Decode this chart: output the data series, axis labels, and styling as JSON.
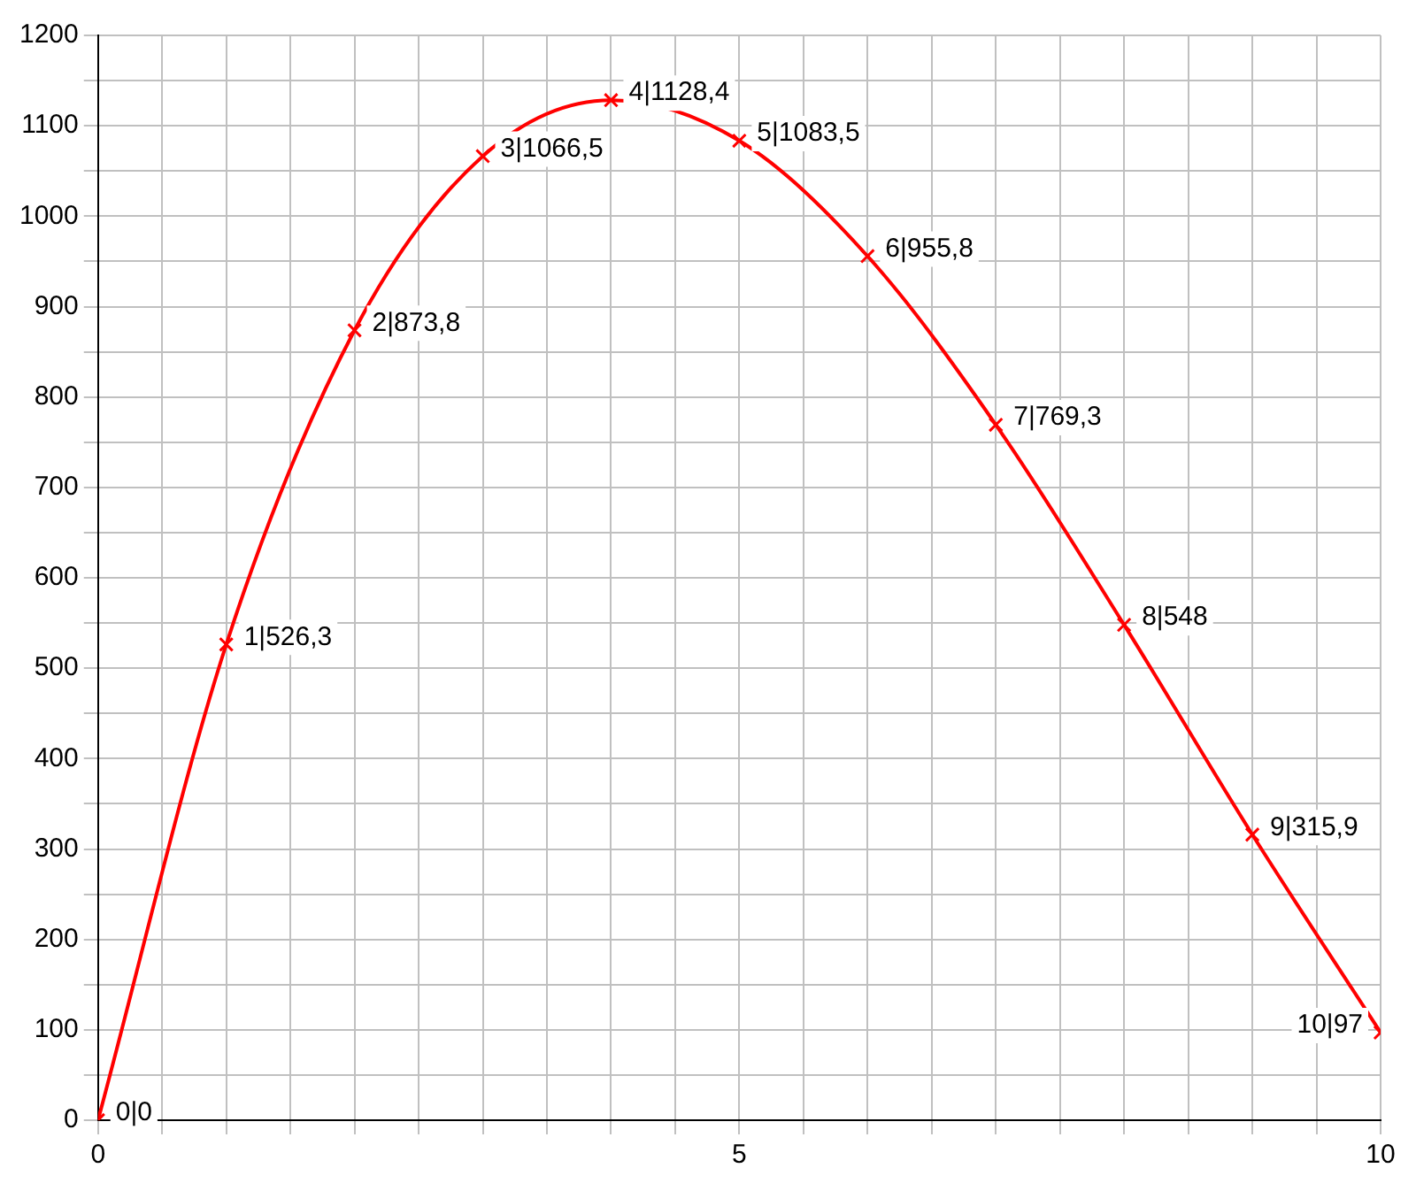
{
  "chart_data": {
    "type": "line",
    "x": [
      0,
      1,
      2,
      3,
      4,
      5,
      6,
      7,
      8,
      9,
      10
    ],
    "series": [
      {
        "color": "#ff0000",
        "values": [
          0,
          526.3,
          873.8,
          1066.5,
          1128.4,
          1083.5,
          955.8,
          769.3,
          548,
          315.9,
          97
        ],
        "value_labels": [
          "0|0",
          "1|526,3",
          "2|873,8",
          "3|1066,5",
          "4|1128,4",
          "5|1083,5",
          "6|955,8",
          "7|769,3",
          "8|548",
          "9|315,9",
          "10|97"
        ]
      }
    ],
    "xlim": [
      0,
      10
    ],
    "xticks": [
      0,
      {
        "value": 0.5,
        "label": null
      },
      {
        "value": 1,
        "label": null
      },
      {
        "value": 1.5,
        "label": null
      },
      {
        "value": 2,
        "label": null
      },
      {
        "value": 2.5,
        "label": null
      },
      {
        "value": 3,
        "label": null
      },
      {
        "value": 3.5,
        "label": null
      },
      {
        "value": 4,
        "label": null
      },
      {
        "value": 4.5,
        "label": null
      },
      5,
      {
        "value": 5.5,
        "label": null
      },
      {
        "value": 6,
        "label": null
      },
      {
        "value": 6.5,
        "label": null
      },
      {
        "value": 7,
        "label": null
      },
      {
        "value": 7.5,
        "label": null
      },
      {
        "value": 8,
        "label": null
      },
      {
        "value": 8.5,
        "label": null
      },
      {
        "value": 9,
        "label": null
      },
      {
        "value": 9.5,
        "label": null
      },
      10
    ],
    "ylim": [
      0,
      1200
    ],
    "yticks": [
      0,
      {
        "value": 50,
        "label": null
      },
      100,
      {
        "value": 150,
        "label": null
      },
      200,
      {
        "value": 250,
        "label": null
      },
      300,
      {
        "value": 350,
        "label": null
      },
      400,
      {
        "value": 450,
        "label": null
      },
      500,
      {
        "value": 550,
        "label": null
      },
      600,
      {
        "value": 650,
        "label": null
      },
      700,
      {
        "value": 750,
        "label": null
      },
      800,
      {
        "value": 850,
        "label": null
      },
      900,
      {
        "value": 950,
        "label": null
      },
      1000,
      {
        "value": 1050,
        "label": null
      },
      1100,
      {
        "value": 1150,
        "label": null
      },
      1200
    ],
    "grid": true,
    "legend": false,
    "marker": "cross",
    "line_style": "solid"
  }
}
